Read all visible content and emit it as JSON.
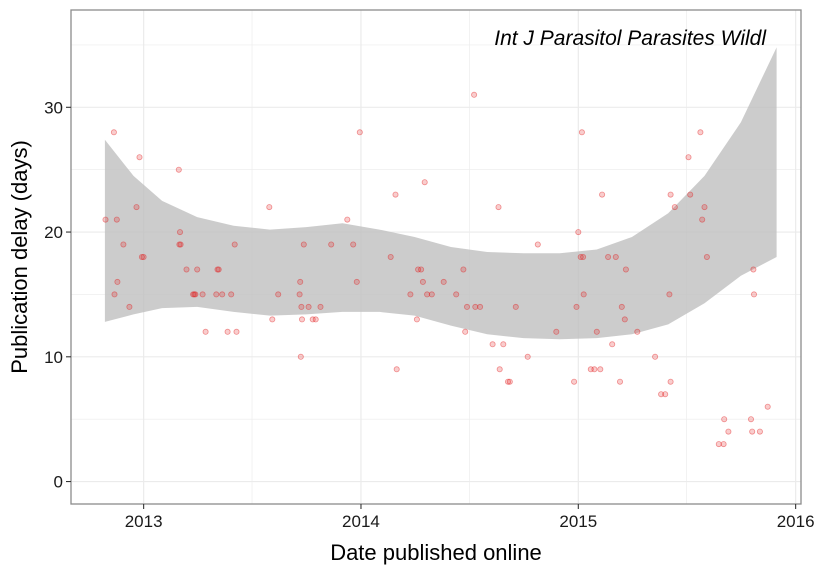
{
  "chart_data": {
    "type": "scatter",
    "title": "",
    "annotation": "Int J Parasitol Parasites Wildl",
    "xlabel": "Date published online",
    "ylabel": "Publication delay (days)",
    "x_ticks": [
      "2013",
      "2014",
      "2015",
      "2016"
    ],
    "y_ticks": [
      "0",
      "10",
      "20",
      "30"
    ],
    "xlim": [
      "2012-09-01",
      "2016-01-10"
    ],
    "ylim": [
      -1.8,
      37.8
    ],
    "grid": true,
    "legend": "none",
    "colors": {
      "points": "#e31a1c",
      "band_fill": "#bfbfbf",
      "panel_border": "#8c8c8c",
      "grid": "#ebebeb"
    },
    "smooth_band": {
      "x": [
        "2012-10-28",
        "2012-12-15",
        "2013-02-01",
        "2013-04-01",
        "2013-06-01",
        "2013-08-01",
        "2013-10-01",
        "2013-12-01",
        "2014-02-01",
        "2014-04-01",
        "2014-06-01",
        "2014-08-01",
        "2014-10-01",
        "2014-12-01",
        "2015-02-01",
        "2015-04-01",
        "2015-06-01",
        "2015-08-01",
        "2015-10-01",
        "2015-11-30"
      ],
      "upper": [
        27.4,
        24.5,
        22.5,
        21.2,
        20.5,
        20.2,
        20.4,
        20.7,
        20.2,
        19.6,
        18.8,
        18.4,
        18.3,
        18.3,
        18.6,
        19.6,
        21.5,
        24.5,
        28.8,
        34.8
      ],
      "lower": [
        12.8,
        13.4,
        13.9,
        14.0,
        13.6,
        13.3,
        13.4,
        13.6,
        13.6,
        13.3,
        12.5,
        11.8,
        11.5,
        11.4,
        11.5,
        11.8,
        12.6,
        14.3,
        16.5,
        18.0
      ]
    },
    "points": [
      {
        "x": "2012-10-29",
        "y": 21
      },
      {
        "x": "2012-11-12",
        "y": 28
      },
      {
        "x": "2012-11-13",
        "y": 15
      },
      {
        "x": "2012-11-17",
        "y": 21
      },
      {
        "x": "2012-11-18",
        "y": 16
      },
      {
        "x": "2012-11-28",
        "y": 19
      },
      {
        "x": "2012-12-08",
        "y": 14
      },
      {
        "x": "2012-12-20",
        "y": 22
      },
      {
        "x": "2012-12-25",
        "y": 26
      },
      {
        "x": "2012-12-29",
        "y": 18
      },
      {
        "x": "2013-01-01",
        "y": 18
      },
      {
        "x": "2013-03-01",
        "y": 25
      },
      {
        "x": "2013-03-02",
        "y": 19
      },
      {
        "x": "2013-03-03",
        "y": 20
      },
      {
        "x": "2013-03-04",
        "y": 19
      },
      {
        "x": "2013-03-14",
        "y": 17
      },
      {
        "x": "2013-03-25",
        "y": 15
      },
      {
        "x": "2013-03-27",
        "y": 15
      },
      {
        "x": "2013-03-29",
        "y": 15
      },
      {
        "x": "2013-04-01",
        "y": 17
      },
      {
        "x": "2013-04-10",
        "y": 15
      },
      {
        "x": "2013-04-15",
        "y": 12
      },
      {
        "x": "2013-05-03",
        "y": 15
      },
      {
        "x": "2013-05-05",
        "y": 17
      },
      {
        "x": "2013-05-07",
        "y": 17
      },
      {
        "x": "2013-05-13",
        "y": 15
      },
      {
        "x": "2013-05-22",
        "y": 12
      },
      {
        "x": "2013-05-28",
        "y": 15
      },
      {
        "x": "2013-06-06",
        "y": 12
      },
      {
        "x": "2013-06-03",
        "y": 19
      },
      {
        "x": "2013-07-31",
        "y": 22
      },
      {
        "x": "2013-08-05",
        "y": 13
      },
      {
        "x": "2013-08-15",
        "y": 15
      },
      {
        "x": "2013-09-20",
        "y": 15
      },
      {
        "x": "2013-09-21",
        "y": 16
      },
      {
        "x": "2013-09-22",
        "y": 10
      },
      {
        "x": "2013-09-23",
        "y": 14
      },
      {
        "x": "2013-09-24",
        "y": 13
      },
      {
        "x": "2013-09-27",
        "y": 19
      },
      {
        "x": "2013-10-05",
        "y": 14
      },
      {
        "x": "2013-10-12",
        "y": 13
      },
      {
        "x": "2013-10-17",
        "y": 13
      },
      {
        "x": "2013-10-25",
        "y": 14
      },
      {
        "x": "2013-11-12",
        "y": 19
      },
      {
        "x": "2013-12-09",
        "y": 21
      },
      {
        "x": "2013-12-19",
        "y": 19
      },
      {
        "x": "2013-12-25",
        "y": 16
      },
      {
        "x": "2013-12-30",
        "y": 28
      },
      {
        "x": "2014-02-20",
        "y": 18
      },
      {
        "x": "2014-02-28",
        "y": 23
      },
      {
        "x": "2014-03-02",
        "y": 9
      },
      {
        "x": "2014-03-25",
        "y": 15
      },
      {
        "x": "2014-04-05",
        "y": 13
      },
      {
        "x": "2014-04-07",
        "y": 17
      },
      {
        "x": "2014-04-12",
        "y": 17
      },
      {
        "x": "2014-04-15",
        "y": 16
      },
      {
        "x": "2014-04-18",
        "y": 24
      },
      {
        "x": "2014-04-22",
        "y": 15
      },
      {
        "x": "2014-04-30",
        "y": 15
      },
      {
        "x": "2014-05-20",
        "y": 16
      },
      {
        "x": "2014-06-10",
        "y": 15
      },
      {
        "x": "2014-06-22",
        "y": 17
      },
      {
        "x": "2014-06-25",
        "y": 12
      },
      {
        "x": "2014-06-28",
        "y": 14
      },
      {
        "x": "2014-07-10",
        "y": 31
      },
      {
        "x": "2014-07-12",
        "y": 14
      },
      {
        "x": "2014-07-20",
        "y": 14
      },
      {
        "x": "2014-08-10",
        "y": 11
      },
      {
        "x": "2014-08-20",
        "y": 22
      },
      {
        "x": "2014-08-22",
        "y": 9
      },
      {
        "x": "2014-08-28",
        "y": 11
      },
      {
        "x": "2014-09-05",
        "y": 8
      },
      {
        "x": "2014-09-08",
        "y": 8
      },
      {
        "x": "2014-09-18",
        "y": 14
      },
      {
        "x": "2014-10-08",
        "y": 10
      },
      {
        "x": "2014-10-25",
        "y": 19
      },
      {
        "x": "2014-11-25",
        "y": 12
      },
      {
        "x": "2014-12-25",
        "y": 8
      },
      {
        "x": "2014-12-29",
        "y": 14
      },
      {
        "x": "2015-01-01",
        "y": 20
      },
      {
        "x": "2015-01-05",
        "y": 18
      },
      {
        "x": "2015-01-07",
        "y": 28
      },
      {
        "x": "2015-01-09",
        "y": 18
      },
      {
        "x": "2015-01-10",
        "y": 15
      },
      {
        "x": "2015-01-22",
        "y": 9
      },
      {
        "x": "2015-01-28",
        "y": 9
      },
      {
        "x": "2015-02-01",
        "y": 12
      },
      {
        "x": "2015-02-07",
        "y": 9
      },
      {
        "x": "2015-02-10",
        "y": 23
      },
      {
        "x": "2015-02-20",
        "y": 18
      },
      {
        "x": "2015-02-27",
        "y": 11
      },
      {
        "x": "2015-03-05",
        "y": 18
      },
      {
        "x": "2015-03-12",
        "y": 8
      },
      {
        "x": "2015-03-15",
        "y": 14
      },
      {
        "x": "2015-03-22",
        "y": 17
      },
      {
        "x": "2015-03-20",
        "y": 13
      },
      {
        "x": "2015-04-10",
        "y": 12
      },
      {
        "x": "2015-05-10",
        "y": 10
      },
      {
        "x": "2015-05-20",
        "y": 7
      },
      {
        "x": "2015-05-27",
        "y": 7
      },
      {
        "x": "2015-06-05",
        "y": 8
      },
      {
        "x": "2015-06-03",
        "y": 15
      },
      {
        "x": "2015-06-05",
        "y": 23
      },
      {
        "x": "2015-06-12",
        "y": 22
      },
      {
        "x": "2015-07-05",
        "y": 26
      },
      {
        "x": "2015-07-08",
        "y": 23
      },
      {
        "x": "2015-07-25",
        "y": 28
      },
      {
        "x": "2015-07-28",
        "y": 21
      },
      {
        "x": "2015-08-01",
        "y": 22
      },
      {
        "x": "2015-08-05",
        "y": 18
      },
      {
        "x": "2015-08-25",
        "y": 3
      },
      {
        "x": "2015-09-02",
        "y": 3
      },
      {
        "x": "2015-09-03",
        "y": 5
      },
      {
        "x": "2015-09-10",
        "y": 4
      },
      {
        "x": "2015-10-18",
        "y": 5
      },
      {
        "x": "2015-10-20",
        "y": 4
      },
      {
        "x": "2015-10-22",
        "y": 17
      },
      {
        "x": "2015-10-23",
        "y": 15
      },
      {
        "x": "2015-11-02",
        "y": 4
      },
      {
        "x": "2015-11-15",
        "y": 6
      }
    ]
  }
}
